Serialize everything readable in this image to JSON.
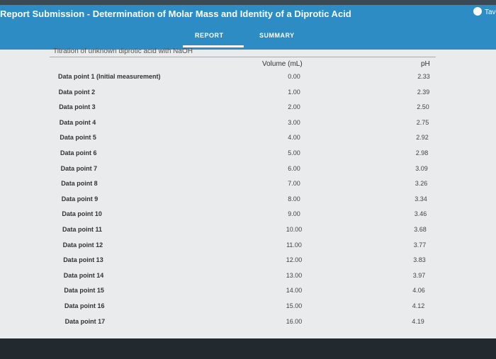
{
  "header": {
    "title": "Report Submission - Determination of Molar Mass and Identity of a Diprotic Acid",
    "user": "Tave",
    "tabs": [
      "REPORT",
      "SUMMARY"
    ]
  },
  "table": {
    "caption": "Titration of unknown diprotic acid with NaOH",
    "columns": [
      "Volume (mL)",
      "pH"
    ],
    "rows": [
      [
        "Data point 1 (Initial measurement)",
        "0.00",
        "2.33"
      ],
      [
        "Data point 2",
        "1.00",
        "2.39"
      ],
      [
        "Data point 3",
        "2.00",
        "2.50"
      ],
      [
        "Data point 4",
        "3.00",
        "2.75"
      ],
      [
        "Data point 5",
        "4.00",
        "2.92"
      ],
      [
        "Data point 6",
        "5.00",
        "2.98"
      ],
      [
        "Data point 7",
        "6.00",
        "3.09"
      ],
      [
        "Data point 8",
        "7.00",
        "3.26"
      ],
      [
        "Data point 9",
        "8.00",
        "3.34"
      ],
      [
        "Data point 10",
        "9.00",
        "3.46"
      ],
      [
        "Data point 11",
        "10.00",
        "3.68"
      ],
      [
        "Data point 12",
        "11.00",
        "3.77"
      ],
      [
        "Data point 13",
        "12.00",
        "3.83"
      ],
      [
        "Data point 14",
        "13.00",
        "3.97"
      ],
      [
        "Data point 15",
        "14.00",
        "4.06"
      ],
      [
        "Data point 16",
        "15.00",
        "4.12"
      ],
      [
        "Data point 17",
        "16.00",
        "4.19"
      ]
    ]
  }
}
